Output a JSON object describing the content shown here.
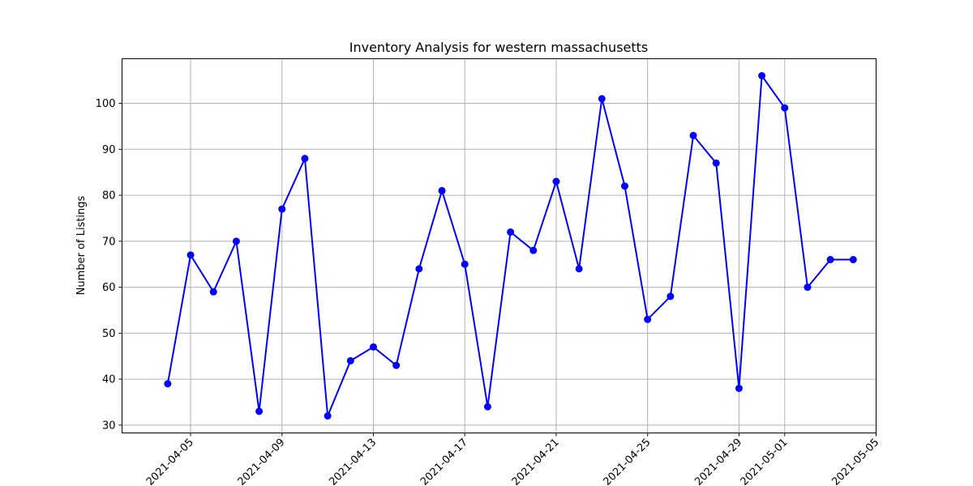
{
  "chart_data": {
    "type": "line",
    "title": "Inventory Analysis for western massachusetts",
    "xlabel": "",
    "ylabel": "Number of Listings",
    "x": [
      "2021-04-04",
      "2021-04-05",
      "2021-04-06",
      "2021-04-07",
      "2021-04-08",
      "2021-04-09",
      "2021-04-10",
      "2021-04-11",
      "2021-04-12",
      "2021-04-13",
      "2021-04-14",
      "2021-04-15",
      "2021-04-16",
      "2021-04-17",
      "2021-04-18",
      "2021-04-19",
      "2021-04-20",
      "2021-04-21",
      "2021-04-22",
      "2021-04-23",
      "2021-04-24",
      "2021-04-25",
      "2021-04-26",
      "2021-04-27",
      "2021-04-28",
      "2021-04-29",
      "2021-04-30",
      "2021-05-01",
      "2021-05-02",
      "2021-05-03",
      "2021-05-04"
    ],
    "values": [
      39,
      67,
      59,
      70,
      33,
      77,
      88,
      32,
      44,
      47,
      43,
      64,
      81,
      65,
      34,
      72,
      68,
      83,
      64,
      101,
      82,
      53,
      58,
      93,
      87,
      38,
      106,
      99,
      60,
      66,
      66
    ],
    "xticks": [
      "2021-04-05",
      "2021-04-09",
      "2021-04-13",
      "2021-04-17",
      "2021-04-21",
      "2021-04-25",
      "2021-04-29",
      "2021-05-01",
      "2021-05-05"
    ],
    "yticks": [
      30,
      40,
      50,
      60,
      70,
      80,
      90,
      100
    ],
    "xlim": [
      "2021-04-02",
      "2021-05-05"
    ],
    "ylim": [
      28.3,
      109.7
    ],
    "grid": true,
    "color": "#0000ff",
    "marker": "circle"
  }
}
